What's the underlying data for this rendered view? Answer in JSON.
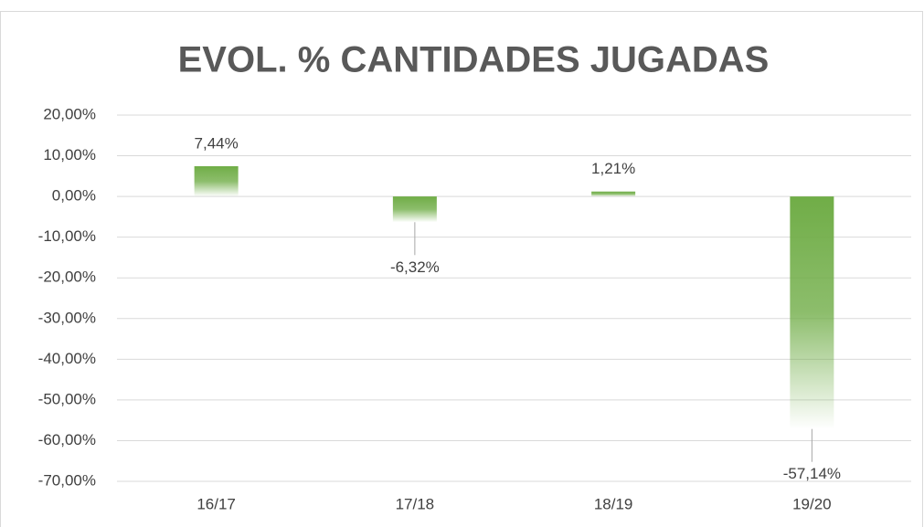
{
  "chart_data": {
    "type": "bar",
    "title": "EVOL. % CANTIDADES JUGADAS",
    "categories": [
      "16/17",
      "17/18",
      "18/19",
      "19/20"
    ],
    "values": [
      7.44,
      -6.32,
      1.21,
      -57.14
    ],
    "value_labels": [
      "7,44%",
      "-6,32%",
      "1,21%",
      "-57,14%"
    ],
    "color": "#70ad47",
    "ylim": [
      -70,
      20
    ],
    "yticks": [
      {
        "value": 20,
        "label": "20,00%"
      },
      {
        "value": 10,
        "label": "10,00%"
      },
      {
        "value": 0,
        "label": "0,00%"
      },
      {
        "value": -10,
        "label": "-10,00%"
      },
      {
        "value": -20,
        "label": "-20,00%"
      },
      {
        "value": -30,
        "label": "-30,00%"
      },
      {
        "value": -40,
        "label": "-40,00%"
      },
      {
        "value": -50,
        "label": "-50,00%"
      },
      {
        "value": -60,
        "label": "-60,00%"
      },
      {
        "value": -70,
        "label": "-70,00%"
      }
    ],
    "grid": true
  }
}
